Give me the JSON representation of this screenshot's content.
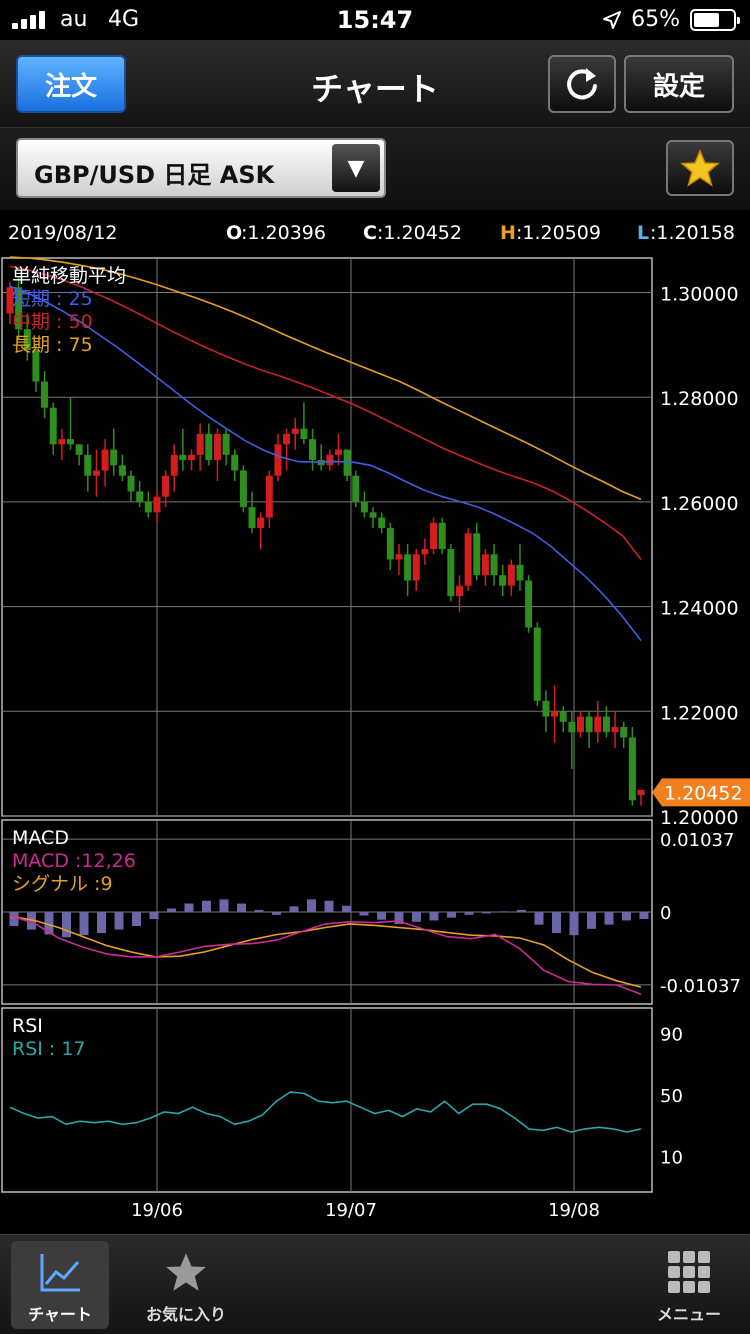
{
  "status_bar": {
    "carrier": "au",
    "network": "4G",
    "time": "15:47",
    "battery_percent": "65%",
    "battery_level": 0.65
  },
  "nav": {
    "order_button": "注文",
    "title": "チャート",
    "settings_button": "設定"
  },
  "selector": {
    "label": "GBP/USD 日足 ASK"
  },
  "ohlc": {
    "date": "2019/08/12",
    "o_label": "O",
    "o_value": ":1.20396",
    "c_label": "C",
    "c_value": ":1.20452",
    "h_label": "H",
    "h_value": ":1.20509",
    "l_label": "L",
    "l_value": ":1.20158"
  },
  "colors": {
    "short_ma": "#3f5fe0",
    "mid_ma": "#c8232a",
    "long_ma": "#e7a11a",
    "up_candle": "#d41e1e",
    "down_candle": "#2f8f1e",
    "macd": "#cc2b97",
    "signal": "#e8a020",
    "histogram": "#6b66a8",
    "rsi": "#2aa7a7",
    "current_price_tag": "#f08020",
    "h_label": "#f0a020",
    "l_label": "#5ab0e8"
  },
  "chart_data": [
    {
      "type": "candlestick",
      "title": "単純移動平均",
      "legend": [
        {
          "label": "短期 : 25",
          "color": "#3f5fe0"
        },
        {
          "label": "中期 : 50",
          "color": "#c8232a"
        },
        {
          "label": "長期 : 75",
          "color": "#e7a11a"
        }
      ],
      "y_ticks": [
        "1.30000",
        "1.28000",
        "1.26000",
        "1.24000",
        "1.22000",
        "1.20000"
      ],
      "ylim": [
        1.2,
        1.3066
      ],
      "current_price": "1.20452",
      "x_ticks": [
        "19/06",
        "19/07",
        "19/08"
      ],
      "candles": [
        [
          1.296,
          1.302,
          1.294,
          1.301
        ],
        [
          1.301,
          1.303,
          1.291,
          1.293
        ],
        [
          1.293,
          1.296,
          1.287,
          1.289
        ],
        [
          1.289,
          1.29,
          1.281,
          1.283
        ],
        [
          1.283,
          1.285,
          1.276,
          1.278
        ],
        [
          1.278,
          1.279,
          1.269,
          1.271
        ],
        [
          1.271,
          1.274,
          1.268,
          1.272
        ],
        [
          1.272,
          1.28,
          1.27,
          1.271
        ],
        [
          1.271,
          1.271,
          1.267,
          1.269
        ],
        [
          1.269,
          1.271,
          1.262,
          1.265
        ],
        [
          1.265,
          1.27,
          1.261,
          1.266
        ],
        [
          1.266,
          1.272,
          1.263,
          1.27
        ],
        [
          1.27,
          1.274,
          1.265,
          1.267
        ],
        [
          1.267,
          1.269,
          1.264,
          1.265
        ],
        [
          1.265,
          1.266,
          1.26,
          1.262
        ],
        [
          1.262,
          1.264,
          1.259,
          1.26
        ],
        [
          1.26,
          1.262,
          1.257,
          1.258
        ],
        [
          1.258,
          1.262,
          1.256,
          1.261
        ],
        [
          1.261,
          1.266,
          1.259,
          1.265
        ],
        [
          1.265,
          1.271,
          1.262,
          1.269
        ],
        [
          1.269,
          1.274,
          1.266,
          1.268
        ],
        [
          1.268,
          1.27,
          1.266,
          1.269
        ],
        [
          1.269,
          1.275,
          1.266,
          1.273
        ],
        [
          1.273,
          1.275,
          1.267,
          1.268
        ],
        [
          1.268,
          1.274,
          1.264,
          1.273
        ],
        [
          1.273,
          1.274,
          1.267,
          1.269
        ],
        [
          1.269,
          1.27,
          1.264,
          1.266
        ],
        [
          1.266,
          1.267,
          1.258,
          1.259
        ],
        [
          1.259,
          1.262,
          1.254,
          1.255
        ],
        [
          1.255,
          1.258,
          1.251,
          1.257
        ],
        [
          1.257,
          1.266,
          1.255,
          1.265
        ],
        [
          1.265,
          1.273,
          1.264,
          1.271
        ],
        [
          1.271,
          1.274,
          1.266,
          1.273
        ],
        [
          1.273,
          1.276,
          1.27,
          1.274
        ],
        [
          1.274,
          1.279,
          1.271,
          1.272
        ],
        [
          1.272,
          1.274,
          1.266,
          1.268
        ],
        [
          1.268,
          1.271,
          1.266,
          1.267
        ],
        [
          1.267,
          1.27,
          1.266,
          1.269
        ],
        [
          1.269,
          1.273,
          1.267,
          1.27
        ],
        [
          1.27,
          1.27,
          1.264,
          1.265
        ],
        [
          1.265,
          1.266,
          1.259,
          1.26
        ],
        [
          1.26,
          1.262,
          1.257,
          1.258
        ],
        [
          1.258,
          1.259,
          1.255,
          1.257
        ],
        [
          1.257,
          1.258,
          1.254,
          1.255
        ],
        [
          1.255,
          1.256,
          1.247,
          1.249
        ],
        [
          1.249,
          1.252,
          1.246,
          1.25
        ],
        [
          1.25,
          1.252,
          1.242,
          1.245
        ],
        [
          1.245,
          1.251,
          1.243,
          1.25
        ],
        [
          1.25,
          1.253,
          1.248,
          1.251
        ],
        [
          1.251,
          1.257,
          1.25,
          1.256
        ],
        [
          1.256,
          1.257,
          1.25,
          1.251
        ],
        [
          1.251,
          1.252,
          1.241,
          1.242
        ],
        [
          1.242,
          1.246,
          1.239,
          1.244
        ],
        [
          1.244,
          1.255,
          1.243,
          1.254
        ],
        [
          1.254,
          1.256,
          1.245,
          1.246
        ],
        [
          1.246,
          1.251,
          1.244,
          1.25
        ],
        [
          1.25,
          1.252,
          1.244,
          1.246
        ],
        [
          1.246,
          1.248,
          1.242,
          1.244
        ],
        [
          1.244,
          1.249,
          1.242,
          1.248
        ],
        [
          1.248,
          1.252,
          1.243,
          1.245
        ],
        [
          1.245,
          1.246,
          1.235,
          1.236
        ],
        [
          1.236,
          1.237,
          1.221,
          1.222
        ],
        [
          1.222,
          1.224,
          1.216,
          1.219
        ],
        [
          1.219,
          1.225,
          1.214,
          1.22
        ],
        [
          1.22,
          1.221,
          1.216,
          1.218
        ],
        [
          1.218,
          1.22,
          1.209,
          1.216
        ],
        [
          1.216,
          1.22,
          1.215,
          1.219
        ],
        [
          1.219,
          1.22,
          1.213,
          1.216
        ],
        [
          1.216,
          1.222,
          1.214,
          1.219
        ],
        [
          1.219,
          1.221,
          1.215,
          1.216
        ],
        [
          1.216,
          1.22,
          1.213,
          1.217
        ],
        [
          1.217,
          1.218,
          1.213,
          1.215
        ],
        [
          1.215,
          1.217,
          1.202,
          1.203
        ],
        [
          1.204,
          1.205,
          1.202,
          1.205
        ]
      ],
      "ma_short": [
        1.3012,
        1.2999,
        1.2982,
        1.2963,
        1.2942,
        1.2918,
        1.2894,
        1.2868,
        1.2842,
        1.2815,
        1.2788,
        1.2763,
        1.274,
        1.2718,
        1.27,
        1.2686,
        1.2677,
        1.2676,
        1.2677,
        1.2676,
        1.267,
        1.2655,
        1.2638,
        1.2622,
        1.261,
        1.26,
        1.259,
        1.2575,
        1.2558,
        1.254,
        1.2515,
        1.2485,
        1.2455,
        1.242,
        1.238,
        1.2335
      ],
      "ma_mid": [
        1.305,
        1.3043,
        1.3034,
        1.3023,
        1.301,
        1.2995,
        1.2979,
        1.2962,
        1.2944,
        1.2926,
        1.2909,
        1.2893,
        1.2878,
        1.2864,
        1.2851,
        1.284,
        1.2828,
        1.2815,
        1.2801,
        1.2787,
        1.2771,
        1.2754,
        1.2737,
        1.272,
        1.2703,
        1.2688,
        1.2674,
        1.266,
        1.2648,
        1.2637,
        1.2622,
        1.2604,
        1.2583,
        1.256,
        1.2535,
        1.249
      ],
      "ma_long": [
        1.3068,
        1.3066,
        1.3062,
        1.3057,
        1.3051,
        1.3044,
        1.3035,
        1.3025,
        1.3014,
        1.3002,
        1.299,
        1.2977,
        1.2963,
        1.2948,
        1.2932,
        1.2916,
        1.2901,
        1.2886,
        1.2872,
        1.2858,
        1.2844,
        1.283,
        1.2813,
        1.2795,
        1.2778,
        1.2761,
        1.2744,
        1.2727,
        1.271,
        1.2692,
        1.2673,
        1.2655,
        1.2638,
        1.262,
        1.2605
      ]
    },
    {
      "type": "line",
      "title": "MACD",
      "legend": [
        {
          "label": "MACD :12,26",
          "color": "#cc2b97"
        },
        {
          "label": "シグナル :9",
          "color": "#e8a020"
        }
      ],
      "y_ticks": [
        "0.01037",
        "0",
        "-0.01037"
      ],
      "ylim": [
        -0.0131,
        0.0131
      ],
      "macd": [
        -0.0005,
        -0.0016,
        -0.0037,
        -0.005,
        -0.006,
        -0.0064,
        -0.0064,
        -0.0057,
        -0.0049,
        -0.0046,
        -0.0045,
        -0.004,
        -0.0028,
        -0.0017,
        -0.0014,
        -0.0015,
        -0.0013,
        -0.0024,
        -0.0035,
        -0.0038,
        -0.0032,
        -0.0052,
        -0.0083,
        -0.0099,
        -0.0103,
        -0.0104,
        -0.0117
      ],
      "signal": [
        -0.0006,
        -0.0012,
        -0.0022,
        -0.0035,
        -0.0048,
        -0.0057,
        -0.0064,
        -0.0063,
        -0.0057,
        -0.0048,
        -0.0039,
        -0.0032,
        -0.0028,
        -0.0022,
        -0.0017,
        -0.0019,
        -0.0022,
        -0.0025,
        -0.0029,
        -0.0033,
        -0.0034,
        -0.0037,
        -0.0047,
        -0.0068,
        -0.0086,
        -0.0098,
        -0.0107
      ],
      "histogram": [
        -0.002,
        -0.0025,
        -0.0032,
        -0.0036,
        -0.0033,
        -0.003,
        -0.0025,
        -0.002,
        -0.001,
        0.0005,
        0.0012,
        0.0016,
        0.0018,
        0.0012,
        0.0003,
        -0.0004,
        0.0008,
        0.0018,
        0.0016,
        0.0009,
        -0.0005,
        -0.0011,
        -0.0017,
        -0.0014,
        -0.0012,
        -0.0008,
        -0.0004,
        -0.0002,
        0.0001,
        0.0003,
        -0.0018,
        -0.003,
        -0.0033,
        -0.0024,
        -0.0018,
        -0.0012,
        -0.001
      ]
    },
    {
      "type": "line",
      "title": "RSI",
      "legend": [
        {
          "label": "RSI : 17",
          "color": "#2aa7a7"
        }
      ],
      "y_ticks": [
        "90",
        "50",
        "10"
      ],
      "ylim": [
        0,
        100
      ],
      "rsi": [
        42,
        38,
        35,
        36,
        31,
        33,
        32,
        33,
        31,
        32,
        35,
        39,
        38,
        42,
        38,
        36,
        31,
        33,
        37,
        46,
        52,
        51,
        46,
        45,
        46,
        42,
        38,
        40,
        36,
        41,
        39,
        46,
        38,
        44,
        44,
        41,
        35,
        28,
        27,
        29,
        26,
        28,
        29,
        28,
        26,
        28
      ]
    }
  ],
  "tabs": [
    {
      "label": "チャート"
    },
    {
      "label": "お気に入り"
    },
    {
      "label": "メニュー"
    }
  ]
}
